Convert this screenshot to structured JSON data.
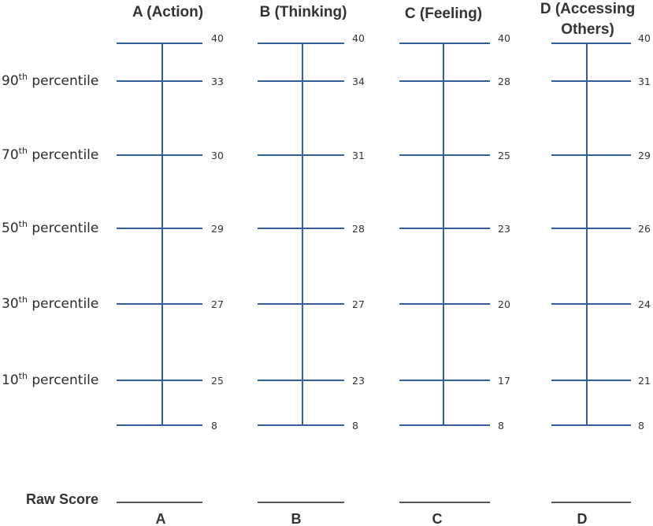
{
  "columns": [
    {
      "id": "A",
      "title_lines": [
        "A (Action)"
      ],
      "letter": "A",
      "values": [
        "40",
        "33",
        "30",
        "29",
        "27",
        "25",
        "8"
      ]
    },
    {
      "id": "B",
      "title_lines": [
        "B (Thinking)"
      ],
      "letter": "B",
      "values": [
        "40",
        "34",
        "31",
        "28",
        "27",
        "23",
        "8"
      ]
    },
    {
      "id": "C",
      "title_lines": [
        "C (Feeling)"
      ],
      "letter": "C",
      "values": [
        "40",
        "28",
        "25",
        "23",
        "20",
        "17",
        "8"
      ]
    },
    {
      "id": "D",
      "title_lines": [
        "D (Accessing",
        "Others)"
      ],
      "letter": "D",
      "values": [
        "40",
        "31",
        "29",
        "26",
        "24",
        "21",
        "8"
      ]
    }
  ],
  "percentiles": [
    {
      "num": "90",
      "sup": "th",
      "text": " percentile"
    },
    {
      "num": "70",
      "sup": "th",
      "text": " percentile"
    },
    {
      "num": "50",
      "sup": "th",
      "text": " percentile"
    },
    {
      "num": "30",
      "sup": "th",
      "text": " percentile"
    },
    {
      "num": "10",
      "sup": "th",
      "text": " percentile"
    }
  ],
  "raw_score_label": "Raw Score"
}
